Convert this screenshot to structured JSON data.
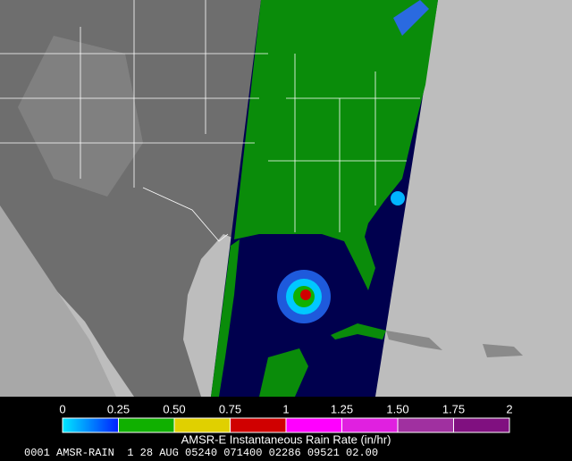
{
  "colorbar": {
    "label": "AMSR-E Instantaneous Rain Rate (in/hr)",
    "range": [
      0,
      2
    ],
    "ticks": [
      0,
      0.25,
      {
        "value": 0.5,
        "label": "0.50"
      },
      0.75,
      1,
      1.25,
      {
        "value": 1.5,
        "label": "1.50"
      },
      1.75,
      2
    ],
    "colors": [
      "#00e0ff",
      "#10b000",
      "#e0d000",
      "#d00000",
      "#ff00ff",
      "#e020e0",
      "#a030a0",
      "#801080"
    ]
  },
  "footer": "0001 AMSR-RAIN  1 28 AUG 05240 071400 02286 09521 02.00"
}
